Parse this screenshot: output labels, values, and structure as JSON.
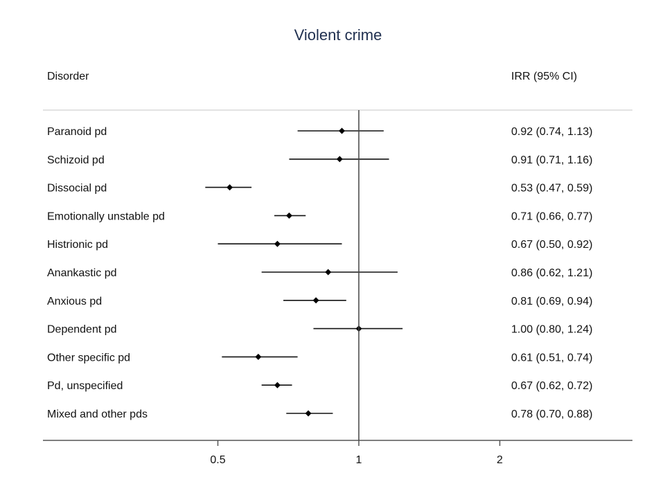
{
  "chart_data": {
    "type": "forest",
    "title": "Violent crime",
    "columns": {
      "left": "Disorder",
      "right": "IRR (95% CI)"
    },
    "xscale": "log",
    "xlim": [
      0.5,
      2
    ],
    "ticks": [
      0.5,
      1,
      2
    ],
    "tick_labels": [
      "0.5",
      "1",
      "2"
    ],
    "reference": 1,
    "rows": [
      {
        "label": "Paranoid pd",
        "est": 0.92,
        "lo": 0.74,
        "hi": 1.13,
        "text": "0.92 (0.74, 1.13)"
      },
      {
        "label": "Schizoid pd",
        "est": 0.91,
        "lo": 0.71,
        "hi": 1.16,
        "text": "0.91 (0.71, 1.16)"
      },
      {
        "label": "Dissocial pd",
        "est": 0.53,
        "lo": 0.47,
        "hi": 0.59,
        "text": "0.53 (0.47, 0.59)"
      },
      {
        "label": "Emotionally unstable pd",
        "est": 0.71,
        "lo": 0.66,
        "hi": 0.77,
        "text": "0.71 (0.66, 0.77)"
      },
      {
        "label": "Histrionic pd",
        "est": 0.67,
        "lo": 0.5,
        "hi": 0.92,
        "text": "0.67 (0.50, 0.92)"
      },
      {
        "label": "Anankastic pd",
        "est": 0.86,
        "lo": 0.62,
        "hi": 1.21,
        "text": "0.86 (0.62, 1.21)"
      },
      {
        "label": "Anxious pd",
        "est": 0.81,
        "lo": 0.69,
        "hi": 0.94,
        "text": "0.81 (0.69, 0.94)"
      },
      {
        "label": "Dependent pd",
        "est": 1.0,
        "lo": 0.8,
        "hi": 1.24,
        "text": "1.00 (0.80, 1.24)"
      },
      {
        "label": "Other specific pd",
        "est": 0.61,
        "lo": 0.51,
        "hi": 0.74,
        "text": "0.61 (0.51, 0.74)"
      },
      {
        "label": "Pd, unspecified",
        "est": 0.67,
        "lo": 0.62,
        "hi": 0.72,
        "text": "0.67 (0.62, 0.72)"
      },
      {
        "label": "Mixed and other pds",
        "est": 0.78,
        "lo": 0.7,
        "hi": 0.88,
        "text": "0.78 (0.70, 0.88)"
      }
    ]
  }
}
